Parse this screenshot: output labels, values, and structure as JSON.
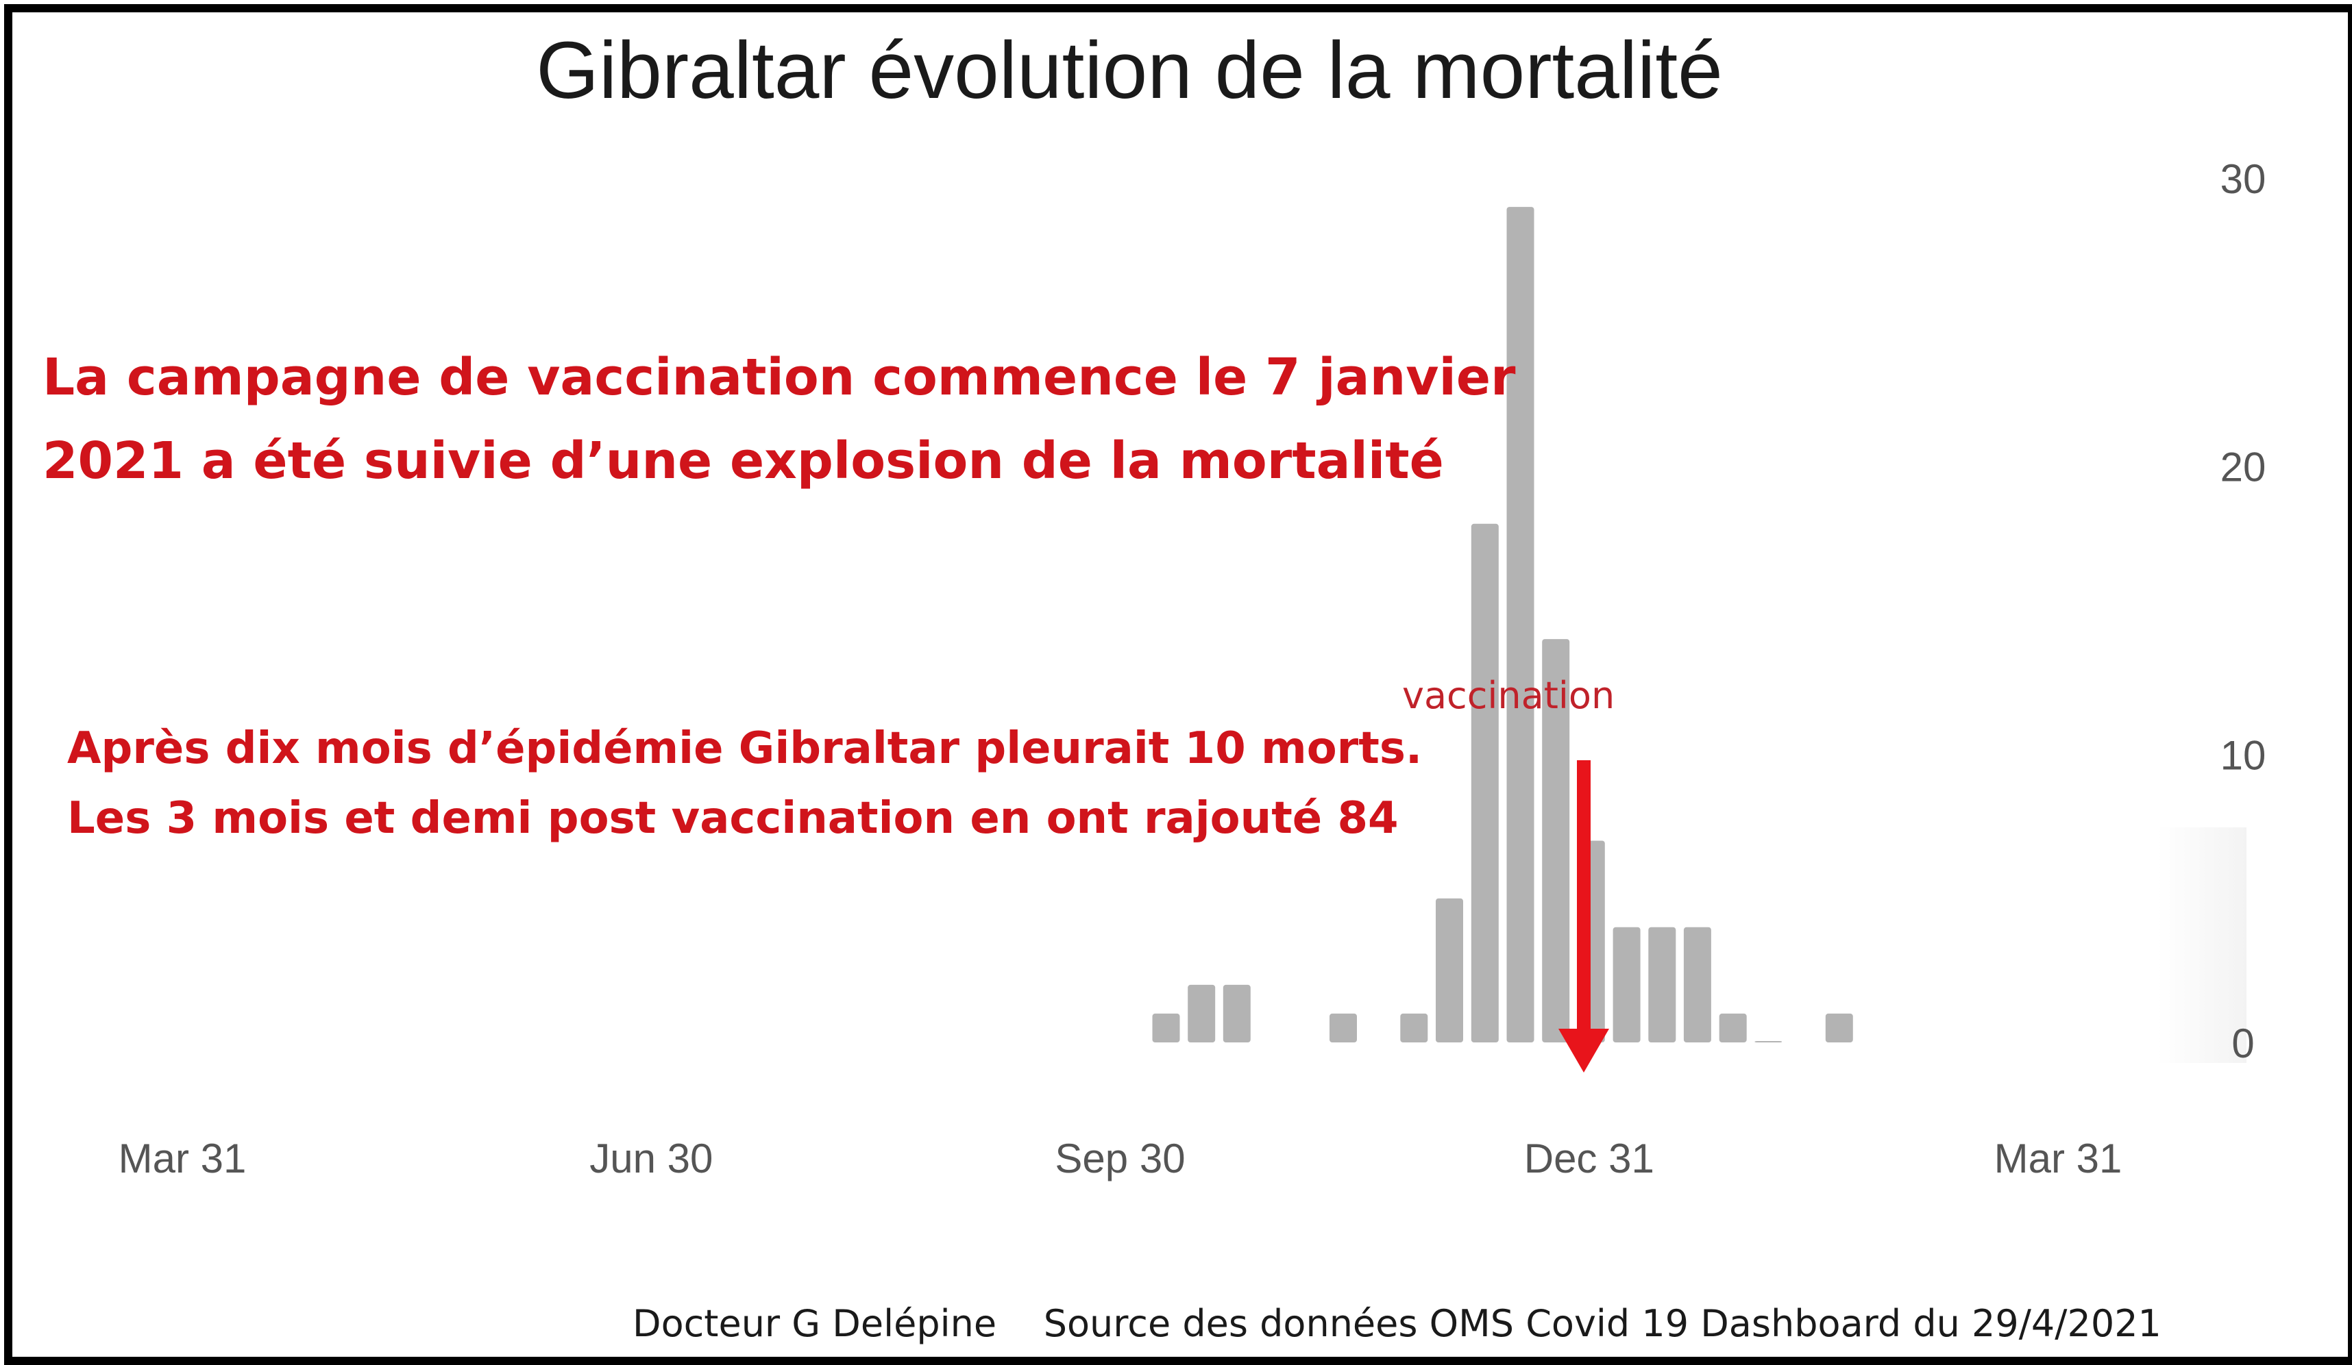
{
  "chart_data": {
    "type": "bar",
    "title": "Gibraltar évolution de la mortalité",
    "xlabel": "",
    "ylabel": "",
    "ylim": [
      0,
      30
    ],
    "yticks": [
      0,
      10,
      20,
      30
    ],
    "y_axis_side": "right",
    "x_tick_labels": [
      "Mar 31",
      "Jun 30",
      "Sep 30",
      "Dec 31",
      "Mar 31"
    ],
    "bar_color": "#b3b3b3",
    "grid": false,
    "legend": "none",
    "x_week_index": [
      28,
      29,
      30,
      33,
      35,
      36,
      37,
      38,
      39,
      40,
      41,
      42,
      43,
      44,
      45,
      47
    ],
    "values": [
      1,
      2,
      2,
      1,
      1,
      5,
      18,
      29,
      14,
      7,
      4,
      4,
      4,
      1,
      0,
      1
    ],
    "annotations": {
      "headline": [
        "La campagne de vaccination commence le 7 janvier",
        "2021 a été suivie d’une explosion de la mortalité"
      ],
      "detail": [
        "Après dix mois d’épidémie Gibraltar pleurait 10 morts.",
        "Les 3 mois et demi  post vaccination en ont rajouté 84"
      ],
      "marker_label": "vaccination",
      "marker_color": "#e8141b",
      "text_color": "#d0141b"
    },
    "credit": "Docteur G Delépine    Source des données OMS Covid 19 Dashboard du 29/4/2021"
  }
}
